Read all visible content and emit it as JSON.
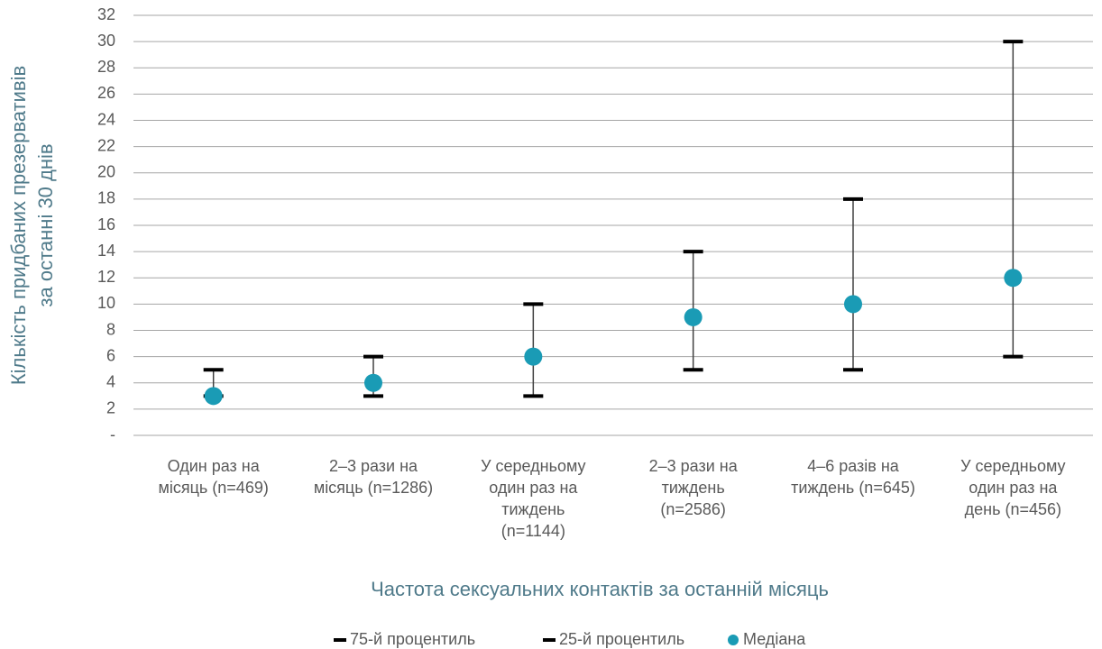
{
  "chart_data": {
    "type": "percentile",
    "y_title": [
      "Кількість придбаних презервативів",
      "за останні 30 днів"
    ],
    "x_title": "Частота сексуальних контактів за останній місяць",
    "categories": [
      [
        "Один раз на",
        "місяць (n=469)"
      ],
      [
        "2–3 рази на",
        "місяць (n=1286)"
      ],
      [
        "У середньому",
        "один раз на",
        "тиждень",
        "(n=1144)"
      ],
      [
        "2–3 рази на",
        "тиждень",
        "(n=2586)"
      ],
      [
        "4–6 разів на",
        "тиждень (n=645)"
      ],
      [
        "У середньому",
        "один раз на",
        "день (n=456)"
      ]
    ],
    "series": [
      {
        "name": "75-й процентиль",
        "color": "#000000",
        "values": [
          5,
          6,
          10,
          14,
          18,
          30
        ]
      },
      {
        "name": "25-й процентиль",
        "color": "#000000",
        "values": [
          3,
          3,
          3,
          5,
          5,
          6
        ]
      },
      {
        "name": "Медіана",
        "color": "#1a9bb5",
        "values": [
          3,
          4,
          6,
          9,
          10,
          12
        ]
      }
    ],
    "ylim": [
      0,
      32
    ],
    "yticks": [
      {
        "value": 0,
        "label": "-"
      },
      2,
      4,
      6,
      8,
      10,
      12,
      14,
      16,
      18,
      20,
      22,
      24,
      26,
      28,
      30,
      32
    ],
    "grid": true,
    "legend": "bottom"
  }
}
